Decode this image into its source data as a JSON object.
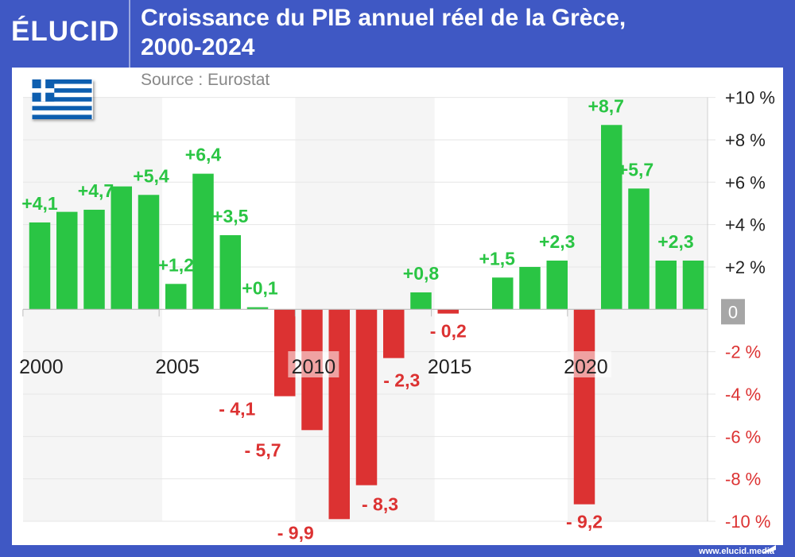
{
  "header": {
    "logo": "ÉLUCID",
    "title_line1": "Croissance du PIB annuel réel de la Grèce,",
    "title_line2": "2000-2024"
  },
  "source": "Source : Eurostat",
  "footer": "www.elucid.media",
  "colors": {
    "frame": "#3f58c4",
    "positive": "#2ac544",
    "negative": "#dc3232",
    "band": "#f5f5f5",
    "zero_box": "#a6a6a6"
  },
  "flag_icon": "greece-flag",
  "chart_data": {
    "type": "bar",
    "title": "Croissance du PIB annuel réel de la Grèce, 2000-2024",
    "categories": [
      2000,
      2001,
      2002,
      2003,
      2004,
      2005,
      2006,
      2007,
      2008,
      2009,
      2010,
      2011,
      2012,
      2013,
      2014,
      2015,
      2016,
      2017,
      2018,
      2019,
      2020,
      2021,
      2022,
      2023,
      2024
    ],
    "values": [
      4.1,
      4.6,
      4.7,
      5.8,
      5.4,
      1.2,
      6.4,
      3.5,
      0.1,
      -4.1,
      -5.7,
      -9.9,
      -8.3,
      -2.3,
      0.8,
      -0.2,
      0.0,
      1.5,
      2.0,
      2.3,
      -9.2,
      8.7,
      5.7,
      2.3,
      2.3
    ],
    "data_labels": [
      "+4,1",
      "",
      "+4,7",
      "",
      "+5,4",
      "+1,2",
      "+6,4",
      "+3,5",
      "+0,1",
      "- 4,1",
      "- 5,7",
      "- 9,9",
      "- 8,3",
      "- 2,3",
      "+0,8",
      "- 0,2",
      "",
      "+1,5",
      "",
      "+2,3",
      "- 9,2",
      "+8,7",
      "+5,7",
      "",
      "+2,3"
    ],
    "x_tick_labels": [
      "2000",
      "2005",
      "2010",
      "2015",
      "2020"
    ],
    "y_ticks": [
      10,
      8,
      6,
      4,
      2,
      0,
      -2,
      -4,
      -6,
      -8,
      -10
    ],
    "y_tick_labels": [
      "+10 %",
      "+8 %",
      "+6 %",
      "+4 %",
      "+2 %",
      "0",
      "-2 %",
      "-4 %",
      "-6 %",
      "-8 %",
      "-10 %"
    ],
    "ylim": [
      -10,
      10
    ],
    "y_axis_position": "right",
    "grid": true
  }
}
